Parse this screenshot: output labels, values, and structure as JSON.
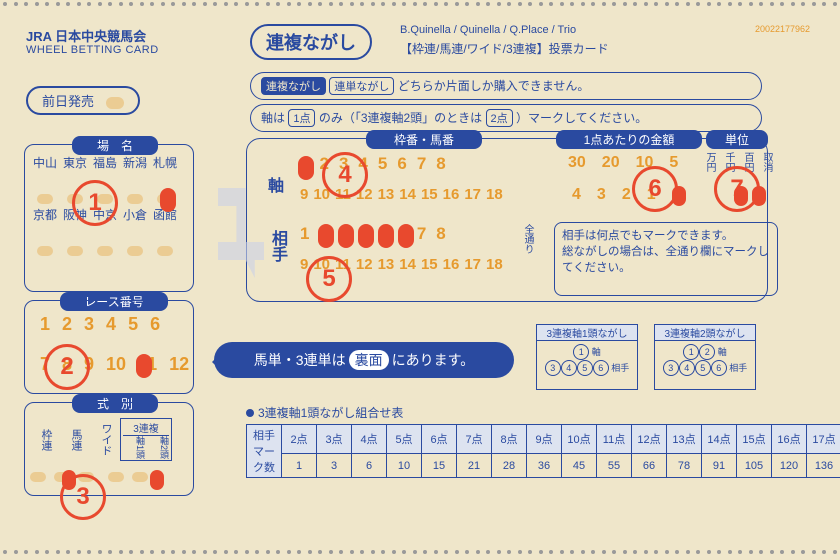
{
  "colors": {
    "blue": "#2a4aa0",
    "orange": "#e69a2e",
    "red": "#e8492e",
    "paper": "#efe6ca"
  },
  "header": {
    "jra": "JRA 日本中央競馬会",
    "sub": "WHEEL BETTING CARD",
    "title": "連複ながし",
    "subtitle_en": "B.Quinella / Quinella / Q.Place / Trio",
    "subtitle_jp": "【枠連/馬連/ワイド/3連複】投票カード",
    "code": "20022177962",
    "presale": "前日発売",
    "note1_a": "連複ながし",
    "note1_b": "連単ながし",
    "note1_c": " どちらか片面しか購入できません。",
    "note2_a": "軸は ",
    "note2_b": "1点",
    "note2_c": " のみ（「3連複軸2頭」のときは ",
    "note2_d": "2点",
    "note2_e": " ）マークしてください。"
  },
  "venues": {
    "header": "場　名",
    "row1": [
      "中山",
      "東京",
      "福島",
      "新潟",
      "札幌"
    ],
    "row2": [
      "京都",
      "阪神",
      "中京",
      "小倉",
      "函館"
    ]
  },
  "race": {
    "header": "レース番号",
    "row1": [
      "1",
      "2",
      "3",
      "4",
      "5",
      "6"
    ],
    "row2": [
      "7",
      "8",
      "9",
      "10",
      "11",
      "12"
    ]
  },
  "bettype": {
    "header": "式　別",
    "cols": [
      "枠連",
      "馬連",
      "ワイド"
    ],
    "box_label": "3連複",
    "box_cols": [
      "軸1頭",
      "軸2頭"
    ]
  },
  "main": {
    "h1": "枠番・馬番",
    "h2": "1点あたりの金額",
    "h3": "単位",
    "axis": "軸",
    "aite": "相手",
    "zentoori": "全通り",
    "row_top": [
      "1",
      "2",
      "3",
      "4",
      "5",
      "6",
      "7",
      "8"
    ],
    "row_bot": [
      "9",
      "10",
      "11",
      "12",
      "13",
      "14",
      "15",
      "16",
      "17",
      "18"
    ],
    "amount_top": [
      "30",
      "20",
      "10",
      "5"
    ],
    "amount_bot": [
      "4",
      "3",
      "2",
      "1"
    ],
    "unit": [
      "万円",
      "千円",
      "百円",
      "取消"
    ],
    "note_l1": "相手は何点でもマークできます。",
    "note_l2": "総ながしの場合は、全通り欄にマークしてください。"
  },
  "speech": {
    "pre": "馬単・3連単は ",
    "pill": "裏面",
    "post": " にあります。"
  },
  "diagrams": {
    "d1_title": "3連複軸1頭ながし",
    "d1_axis": "軸",
    "d1_aite": "相手",
    "d2_title": "3連複軸2頭ながし",
    "d2_axis": "軸",
    "d2_aite": "相手"
  },
  "combo": {
    "title": "3連複軸1頭ながし組合せ表",
    "side": "相手マーク数",
    "headers": [
      "2点",
      "3点",
      "4点",
      "5点",
      "6点",
      "7点",
      "8点",
      "9点",
      "10点",
      "11点",
      "12点",
      "13点",
      "14点",
      "15点",
      "16点",
      "17点"
    ],
    "values": [
      "1",
      "3",
      "6",
      "10",
      "15",
      "21",
      "28",
      "36",
      "45",
      "55",
      "66",
      "78",
      "91",
      "105",
      "120",
      "136"
    ]
  },
  "annotations": {
    "c1": "1",
    "c2": "2",
    "c3": "3",
    "c4": "4",
    "c5": "5",
    "c6": "6",
    "c7": "7"
  }
}
